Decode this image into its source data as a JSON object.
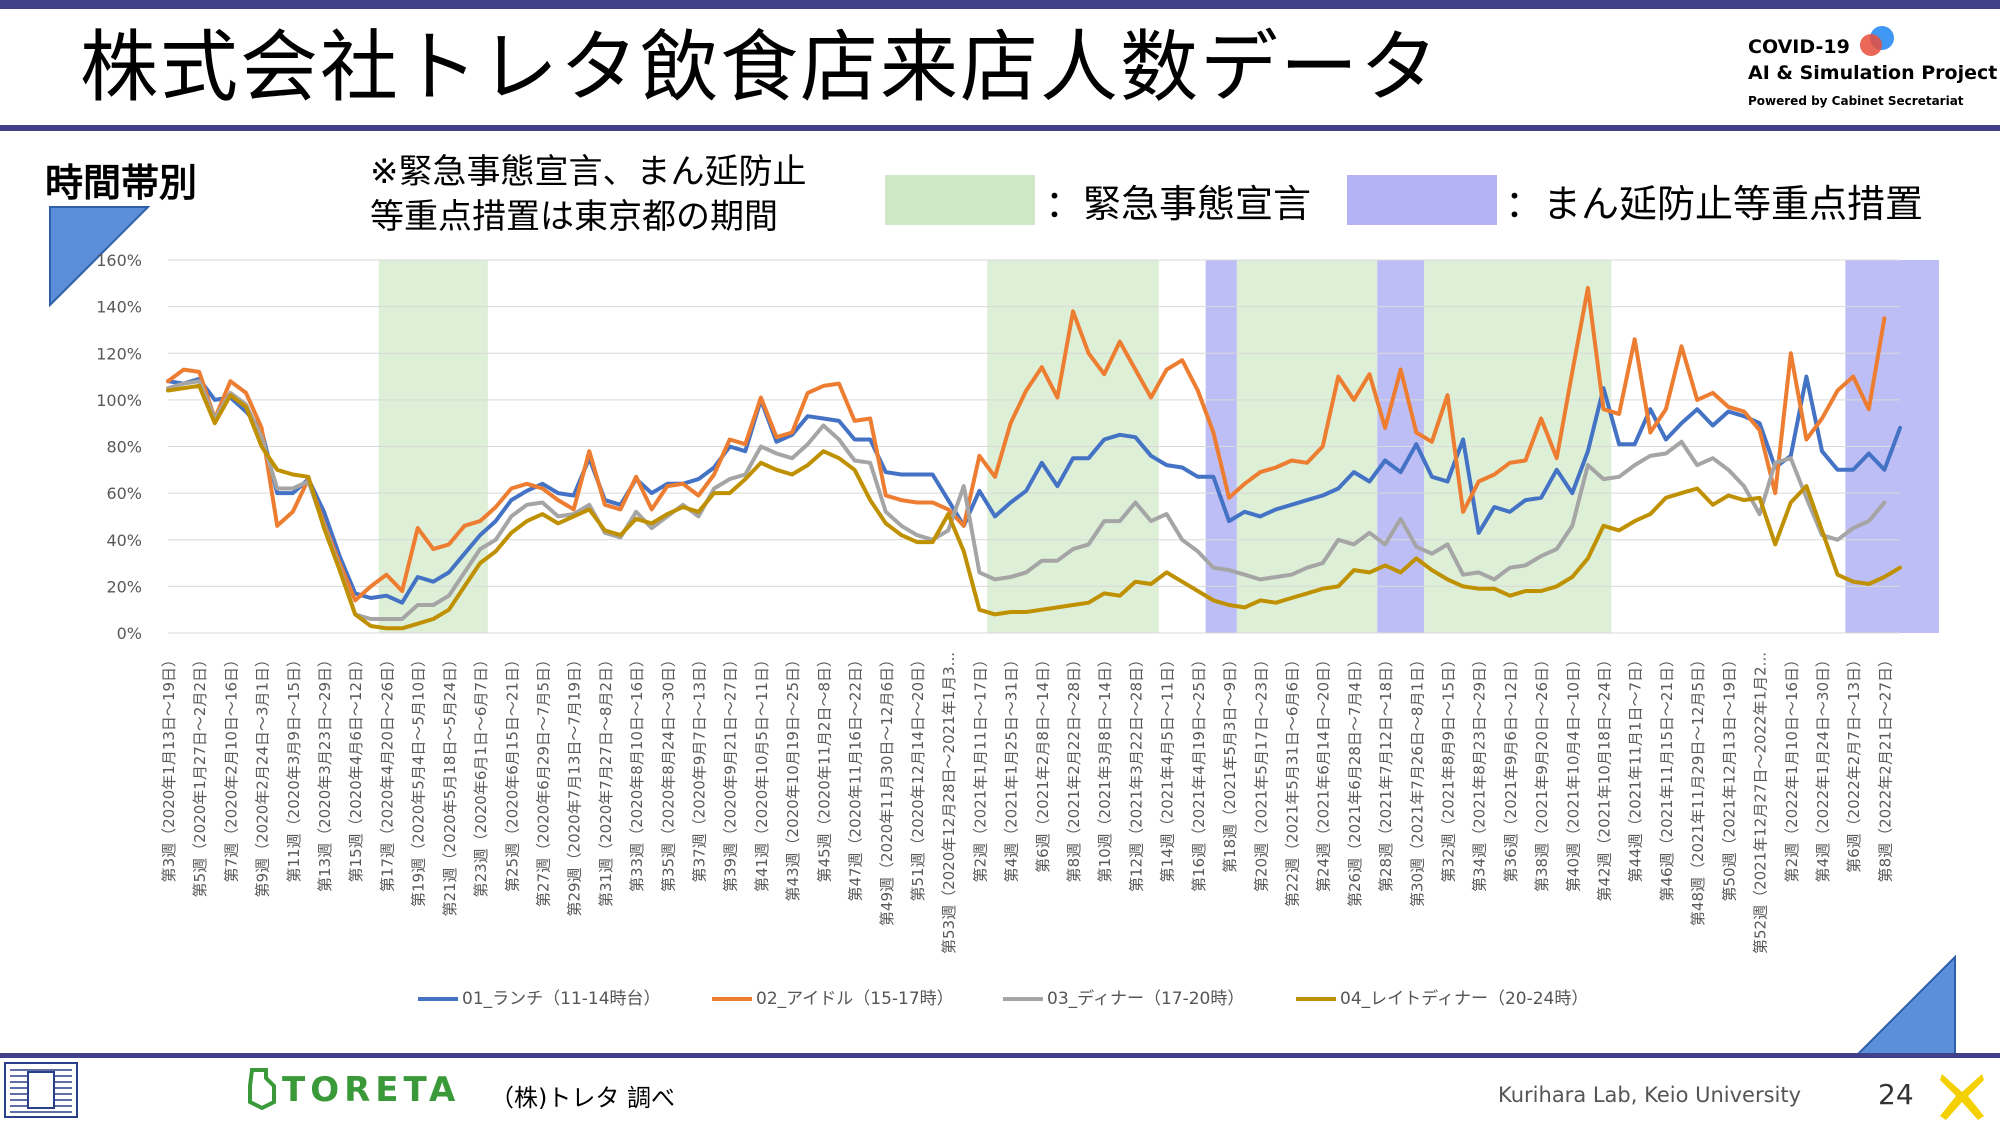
{
  "title": "株式会社トレタ飲食店来店人数データ",
  "logo": {
    "line1": "COVID-19",
    "line2": "AI & Simulation Project",
    "line3": "Powered by Cabinet Secretariat"
  },
  "subtitle": "時間帯別",
  "note": "※緊急事態宣言、まん延防止\n等重点措置は東京都の期間",
  "legend_boxes": [
    {
      "label": "：緊急事態宣言",
      "color": "#cfe8c6"
    },
    {
      "label": "：まん延防止等重点措置",
      "color": "#b3b3f5"
    }
  ],
  "series_legend": [
    {
      "label": "01_ランチ（11-14時台）",
      "color": "#4472c4"
    },
    {
      "label": "02_アイドル（15-17時）",
      "color": "#ed7d31"
    },
    {
      "label": "03_ディナー（17-20時）",
      "color": "#a5a5a5"
    },
    {
      "label": "04_レイトディナー（20-24時）",
      "color": "#bf9000"
    }
  ],
  "footer": {
    "brand": "TORETA",
    "survey": "（株)トレタ 調べ",
    "lab": "Kurihara Lab, Keio University",
    "page": "24"
  },
  "chart_data": {
    "type": "line",
    "ylim": [
      0,
      160
    ],
    "yticks": [
      "0%",
      "20%",
      "40%",
      "60%",
      "80%",
      "100%",
      "120%",
      "140%",
      "160%"
    ],
    "grid": true,
    "legend_position": "bottom",
    "x_labels": [
      "第3週（2020年1月13日～19日）",
      "第5週（2020年1月27日～2月2日）",
      "第7週（2020年2月10日～16日）",
      "第9週（2020年2月24日～3月1日）",
      "第11週（2020年3月9日～15日）",
      "第13週（2020年3月23日～29日）",
      "第15週（2020年4月6日～12日）",
      "第17週（2020年4月20日～26日）",
      "第19週（2020年5月4日～5月10日）",
      "第21週（2020年5月18日～5月24日）",
      "第23週（2020年6月1日～6月7日）",
      "第25週（2020年6月15日～21日）",
      "第27週（2020年6月29日～7月5日）",
      "第29週（2020年7月13日～7月19日）",
      "第31週（2020年7月27日～8月2日）",
      "第33週（2020年8月10日～16日）",
      "第35週（2020年8月24日～30日）",
      "第37週（2020年9月7日～13日）",
      "第39週（2020年9月21日～27日）",
      "第41週（2020年10月5日～11日）",
      "第43週（2020年10月19日～25日）",
      "第45週（2020年11月2日～8日）",
      "第47週（2020年11月16日～22日）",
      "第49週（2020年11月30日～12月6日）",
      "第51週（2020年12月14日～20日）",
      "第53週（2020年12月28日～2021年1月3...",
      "第2週（2021年1月11日～17日）",
      "第4週（2021年1月25日～31日）",
      "第6週（2021年2月8日～14日）",
      "第8週（2021年2月22日～28日）",
      "第10週（2021年3月8日～14日）",
      "第12週（2021年3月22日～28日）",
      "第14週（2021年4月5日～11日）",
      "第16週（2021年4月19日～25日）",
      "第18週（2021年5月3日～9日）",
      "第20週（2021年5月17日～23日）",
      "第22週（2021年5月31日～6月6日）",
      "第24週（2021年6月14日～20日）",
      "第26週（2021年6月28日～7月4日）",
      "第28週（2021年7月12日～18日）",
      "第30週（2021年7月26日～8月1日）",
      "第32週（2021年8月9日～15日）",
      "第34週（2021年8月23日～29日）",
      "第36週（2021年9月6日～12日）",
      "第38週（2021年9月20日～26日）",
      "第40週（2021年10月4日～10日）",
      "第42週（2021年10月18日～24日）",
      "第44週（2021年11月1日～7日）",
      "第46週（2021年11月15日～21日）",
      "第48週（2021年11月29日～12月5日）",
      "第50週（2021年12月13日～19日）",
      "第52週（2021年12月27日～2022年1月2...",
      "第2週（2022年1月10日～16日）",
      "第4週（2022年1月24日～30日）",
      "第6週（2022年2月7日～13日）",
      "第8週（2022年2月21日～27日）"
    ],
    "periods": [
      {
        "kind": "emergency",
        "start": 14,
        "end": 21
      },
      {
        "kind": "emergency",
        "start": 53,
        "end": 64
      },
      {
        "kind": "semi",
        "start": 67,
        "end": 69
      },
      {
        "kind": "emergency",
        "start": 69,
        "end": 78
      },
      {
        "kind": "semi",
        "start": 78,
        "end": 81
      },
      {
        "kind": "emergency",
        "start": 81,
        "end": 93
      },
      {
        "kind": "semi",
        "start": 108,
        "end": 114
      }
    ],
    "series": [
      {
        "name": "01_ランチ（11-14時台）",
        "color": "#4472c4",
        "values": [
          108,
          107,
          109,
          100,
          101,
          95,
          87,
          60,
          60,
          66,
          52,
          33,
          17,
          15,
          16,
          13,
          24,
          22,
          26,
          34,
          42,
          48,
          57,
          61,
          64,
          60,
          59,
          75,
          57,
          55,
          66,
          60,
          64,
          64,
          66,
          71,
          80,
          78,
          100,
          82,
          85,
          93,
          92,
          91,
          83,
          83,
          69,
          68,
          68,
          68,
          57,
          46,
          61,
          50,
          56,
          61,
          73,
          63,
          75,
          75,
          83,
          85,
          84,
          76,
          72,
          71,
          67,
          67,
          48,
          52,
          50,
          53,
          55,
          57,
          59,
          62,
          69,
          65,
          74,
          69,
          81,
          67,
          65,
          83,
          43,
          54,
          52,
          57,
          58,
          70,
          60,
          78,
          105,
          81,
          81,
          96,
          83,
          90,
          96,
          89,
          95,
          93,
          90,
          71,
          76,
          110,
          78,
          70,
          70,
          77,
          70,
          88
        ]
      },
      {
        "name": "02_アイドル（15-17時）",
        "color": "#ed7d31",
        "values": [
          108,
          113,
          112,
          92,
          108,
          103,
          88,
          46,
          52,
          66,
          47,
          30,
          14,
          20,
          25,
          18,
          45,
          36,
          38,
          46,
          48,
          54,
          62,
          64,
          62,
          57,
          53,
          78,
          55,
          53,
          67,
          53,
          63,
          64,
          59,
          68,
          83,
          81,
          101,
          84,
          86,
          103,
          106,
          107,
          91,
          92,
          59,
          57,
          56,
          56,
          53,
          46,
          76,
          67,
          90,
          104,
          114,
          101,
          138,
          120,
          111,
          125,
          113,
          101,
          113,
          117,
          104,
          86,
          58,
          64,
          69,
          71,
          74,
          73,
          80,
          110,
          100,
          111,
          88,
          113,
          86,
          82,
          102,
          52,
          65,
          68,
          73,
          74,
          92,
          75,
          112,
          148,
          96,
          94,
          126,
          86,
          96,
          123,
          100,
          103,
          97,
          95,
          87,
          60,
          120,
          83,
          92,
          104,
          110,
          96,
          135
        ]
      },
      {
        "name": "03_ディナー（17-20時）",
        "color": "#a5a5a5",
        "values": [
          105,
          107,
          108,
          92,
          103,
          98,
          84,
          62,
          62,
          65,
          46,
          28,
          8,
          6,
          6,
          6,
          12,
          12,
          16,
          26,
          36,
          40,
          50,
          55,
          56,
          50,
          51,
          55,
          43,
          41,
          52,
          45,
          50,
          55,
          50,
          62,
          66,
          68,
          80,
          77,
          75,
          81,
          89,
          83,
          74,
          73,
          52,
          46,
          42,
          40,
          44,
          63,
          26,
          23,
          24,
          26,
          31,
          31,
          36,
          38,
          48,
          48,
          56,
          48,
          51,
          40,
          35,
          28,
          27,
          25,
          23,
          24,
          25,
          28,
          30,
          40,
          38,
          43,
          38,
          49,
          37,
          34,
          38,
          25,
          26,
          23,
          28,
          29,
          33,
          36,
          46,
          72,
          66,
          67,
          72,
          76,
          77,
          82,
          72,
          75,
          70,
          63,
          51,
          73,
          75,
          58,
          42,
          40,
          45,
          48,
          56
        ]
      },
      {
        "name": "04_レイトディナー（20-24時）",
        "color": "#bf9000",
        "values": [
          104,
          105,
          106,
          90,
          102,
          97,
          80,
          70,
          68,
          67,
          45,
          27,
          8,
          3,
          2,
          2,
          4,
          6,
          10,
          20,
          30,
          35,
          43,
          48,
          51,
          47,
          50,
          53,
          44,
          42,
          49,
          47,
          51,
          54,
          52,
          60,
          60,
          66,
          73,
          70,
          68,
          72,
          78,
          75,
          70,
          57,
          47,
          42,
          39,
          39,
          51,
          35,
          10,
          8,
          9,
          9,
          10,
          11,
          12,
          13,
          17,
          16,
          22,
          21,
          26,
          22,
          18,
          14,
          12,
          11,
          14,
          13,
          15,
          17,
          19,
          20,
          27,
          26,
          29,
          26,
          32,
          27,
          23,
          20,
          19,
          19,
          16,
          18,
          18,
          20,
          24,
          32,
          46,
          44,
          48,
          51,
          58,
          60,
          62,
          55,
          59,
          57,
          58,
          38,
          56,
          63,
          44,
          25,
          22,
          21,
          24,
          28
        ]
      }
    ]
  }
}
